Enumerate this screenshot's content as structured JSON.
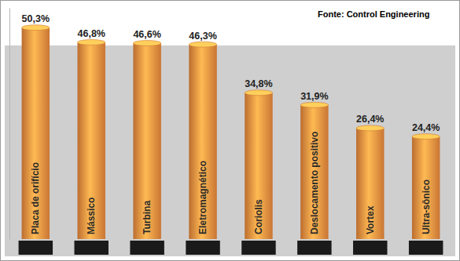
{
  "chart_data": {
    "type": "bar",
    "annotations": [
      "Fonte: Control Engineering"
    ],
    "categories": [
      "Placa de orifício",
      "Mássico",
      "Turbina",
      "Eletromagnético",
      "Coriolis",
      "Deslocamento positivo",
      "Vortex",
      "Ultra-sônico"
    ],
    "values": [
      50.3,
      46.8,
      46.6,
      46.3,
      34.8,
      31.9,
      26.4,
      24.4
    ],
    "value_labels": [
      "50,3%",
      "46,8%",
      "46,6%",
      "46,3%",
      "34,8%",
      "31,9%",
      "26,4%",
      "24,4%"
    ],
    "color": "#e8873c",
    "ylim": [
      0,
      55
    ],
    "data_labels": true,
    "tick_labels": "x",
    "grid": false
  }
}
